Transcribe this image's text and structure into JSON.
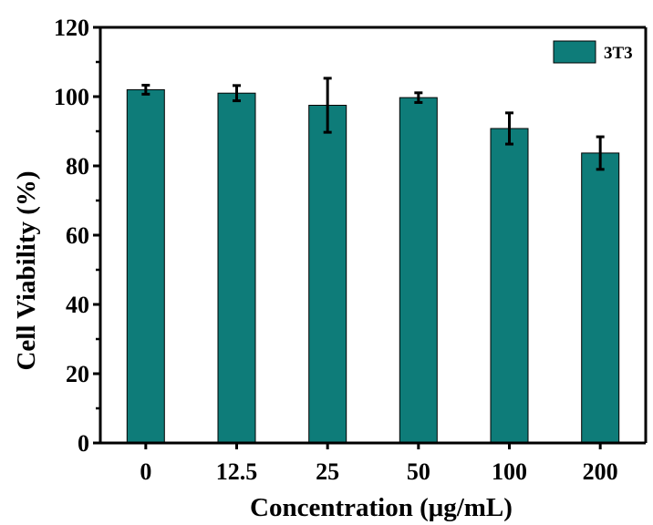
{
  "chart_data": {
    "type": "bar",
    "categories": [
      "0",
      "12.5",
      "25",
      "50",
      "100",
      "200"
    ],
    "series": [
      {
        "name": "3T3",
        "values": [
          102,
          101,
          97.5,
          99.7,
          90.8,
          83.7
        ],
        "errors": [
          1.3,
          2.2,
          7.8,
          1.4,
          4.5,
          4.7
        ],
        "color": "#0e7c79"
      }
    ],
    "xlabel": "Concentration (μg/mL)",
    "ylabel": "Cell Viability (%)",
    "ylim": [
      0,
      120
    ],
    "yticks": [
      0,
      20,
      40,
      60,
      80,
      100,
      120
    ],
    "grid": false,
    "legend_position": "top-right"
  }
}
